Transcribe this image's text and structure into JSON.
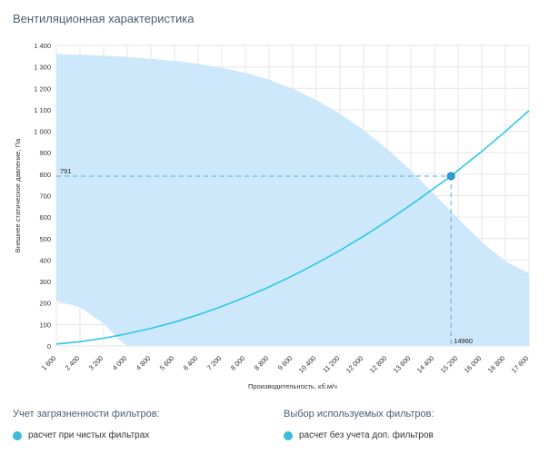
{
  "page": {
    "title": "Вентиляционная характеристика"
  },
  "chart_data": {
    "type": "line",
    "title": "Вентиляционная характеристика",
    "xlabel": "Производительность, кб.м/ч",
    "ylabel": "Внешнее статическое давление, Па",
    "xlim": [
      1600,
      17600
    ],
    "ylim": [
      0,
      1400
    ],
    "x_ticks": [
      1600,
      2400,
      3200,
      4000,
      4800,
      5600,
      6400,
      7200,
      8000,
      8800,
      9600,
      10400,
      11200,
      12000,
      12800,
      13600,
      14400,
      15200,
      16000,
      16800,
      17600
    ],
    "x_tick_labels": [
      "1 600",
      "2 400",
      "3 200",
      "4 000",
      "4 800",
      "5 600",
      "6 400",
      "7 200",
      "8 000",
      "8 800",
      "9 600",
      "10 400",
      "11 200",
      "12 000",
      "12 800",
      "13 600",
      "14 400",
      "15 200",
      "16 000",
      "16 800",
      "17 600"
    ],
    "y_ticks": [
      0,
      100,
      200,
      300,
      400,
      500,
      600,
      700,
      800,
      900,
      1000,
      1100,
      1200,
      1300,
      1400
    ],
    "y_tick_labels": [
      "0",
      "100",
      "200",
      "300",
      "400",
      "500",
      "600",
      "700",
      "800",
      "900",
      "1 000",
      "1 100",
      "1 200",
      "1 300",
      "1 400"
    ],
    "grid": true,
    "series": [
      {
        "name": "system-curve",
        "x": [
          1600,
          2400,
          3200,
          4000,
          4800,
          5600,
          6400,
          7200,
          8000,
          8800,
          9600,
          10400,
          11200,
          12000,
          12800,
          13600,
          14400,
          14960,
          15200,
          16000,
          16800,
          17600
        ],
        "values": [
          9,
          20,
          36,
          57,
          82,
          111,
          145,
          184,
          227,
          275,
          327,
          384,
          445,
          511,
          582,
          657,
          736,
          791,
          818,
          906,
          999,
          1096
        ]
      }
    ],
    "operating_area": {
      "upper_x": [
        1600,
        2400,
        3200,
        4000,
        4800,
        5600,
        6400,
        7200,
        8000,
        8800,
        9600,
        10400,
        11200,
        12000,
        12800,
        13600,
        14400,
        15200,
        16000,
        16800,
        17600
      ],
      "upper_y": [
        1360,
        1357,
        1352,
        1346,
        1338,
        1328,
        1314,
        1296,
        1272,
        1240,
        1198,
        1146,
        1082,
        1006,
        918,
        818,
        706,
        594,
        484,
        395,
        338
      ],
      "lower_x": [
        1600,
        2400,
        3200,
        3700,
        4000,
        17600
      ],
      "lower_y": [
        210,
        180,
        105,
        30,
        0,
        0
      ]
    },
    "operating_point": {
      "x": 14960,
      "y": 791,
      "x_label": "14960",
      "y_label": "791"
    },
    "colors": {
      "area": "#cde8fb",
      "curve": "#2cc7e6",
      "point": "#2a9fd6",
      "guide": "#5aa9d8",
      "grid": "#e6e6e6"
    }
  },
  "options": {
    "filter_contamination": {
      "heading": "Учет загрязненности фильтров:",
      "selected_label": "расчет при чистых фильтрах",
      "dot_color": "#3bbcd9"
    },
    "filter_choice": {
      "heading": "Выбор используемых фильтров:",
      "selected_label": "расчет без учета доп. фильтров",
      "dot_color": "#3bbcd9"
    }
  }
}
